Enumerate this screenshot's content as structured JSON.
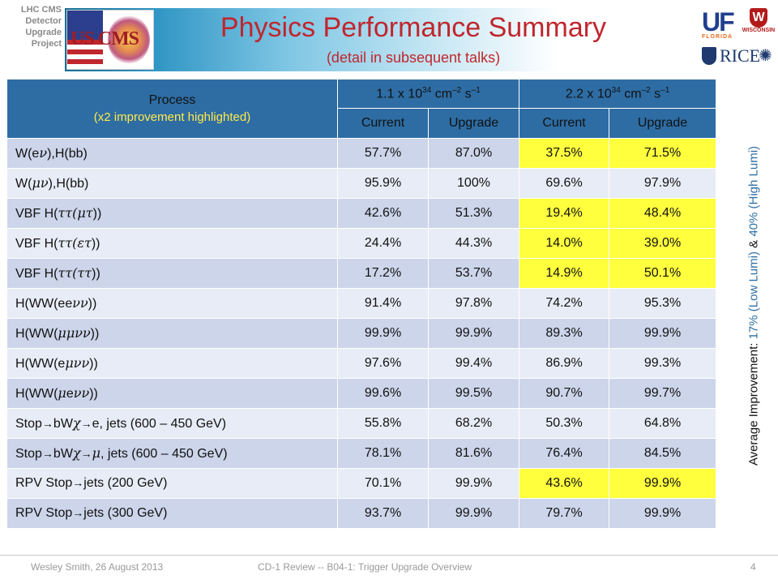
{
  "header": {
    "project_lines": [
      "LHC CMS",
      "Detector",
      "Upgrade",
      "Project"
    ],
    "uscms_logo_text": "US CMS",
    "title": "Physics Performance Summary",
    "subtitle": "(detail in subsequent talks)",
    "logos": {
      "uf": "UF",
      "uf_sub": "FLORIDA",
      "wisconsin": "W",
      "wisconsin_sub": "WISCONSIN",
      "rice": "RICE"
    }
  },
  "table": {
    "process_header": "Process",
    "process_note": "(x2 improvement highlighted)",
    "lumi_groups": [
      {
        "base": "1.1 x 10",
        "exp": "34",
        "units": " cm",
        "uexp1": "–2",
        "units2": " s",
        "uexp2": "–1"
      },
      {
        "base": "2.2 x 10",
        "exp": "34",
        "units": " cm",
        "uexp1": "–2",
        "units2": " s",
        "uexp2": "–1"
      }
    ],
    "subheaders": [
      "Current",
      "Upgrade",
      "Current",
      "Upgrade"
    ],
    "highlight_color": "#ffff3d",
    "rows": [
      {
        "parts": [
          "W(e",
          "ν",
          "),H(bb)"
        ],
        "greek": [
          false,
          true,
          false
        ],
        "values": [
          "57.7%",
          "87.0%",
          "37.5%",
          "71.5%"
        ],
        "highlight": true
      },
      {
        "parts": [
          "W(",
          "μν",
          "),H(bb)"
        ],
        "greek": [
          false,
          true,
          false
        ],
        "values": [
          "95.9%",
          "100%",
          "69.6%",
          "97.9%"
        ],
        "highlight": false
      },
      {
        "parts": [
          "VBF H(",
          "ττ(μτ",
          "))"
        ],
        "greek": [
          false,
          true,
          false
        ],
        "values": [
          "42.6%",
          "51.3%",
          "19.4%",
          "48.4%"
        ],
        "highlight": true
      },
      {
        "parts": [
          "VBF H(",
          "ττ(ετ",
          "))"
        ],
        "greek": [
          false,
          true,
          false
        ],
        "values": [
          "24.4%",
          "44.3%",
          "14.0%",
          "39.0%"
        ],
        "highlight": true
      },
      {
        "parts": [
          "VBF H(",
          "ττ(ττ",
          "))"
        ],
        "greek": [
          false,
          true,
          false
        ],
        "values": [
          "17.2%",
          "53.7%",
          "14.9%",
          "50.1%"
        ],
        "highlight": true
      },
      {
        "parts": [
          "H(WW(ee",
          "νν",
          "))"
        ],
        "greek": [
          false,
          true,
          false
        ],
        "values": [
          "91.4%",
          "97.8%",
          "74.2%",
          "95.3%"
        ],
        "highlight": false
      },
      {
        "parts": [
          "H(WW(",
          "μμνν",
          "))"
        ],
        "greek": [
          false,
          true,
          false
        ],
        "values": [
          "99.9%",
          "99.9%",
          "89.3%",
          "99.9%"
        ],
        "highlight": false
      },
      {
        "parts": [
          "H(WW(e",
          "μνν",
          "))"
        ],
        "greek": [
          false,
          true,
          false
        ],
        "values": [
          "97.6%",
          "99.4%",
          "86.9%",
          "99.3%"
        ],
        "highlight": false
      },
      {
        "parts": [
          "H(WW(",
          "μ",
          "e",
          "νν",
          "))"
        ],
        "greek": [
          false,
          true,
          false,
          true,
          false
        ],
        "values": [
          "99.6%",
          "99.5%",
          "90.7%",
          "99.7%"
        ],
        "highlight": false
      },
      {
        "parts": [
          "Stop",
          "→",
          "bW",
          "χ",
          "→",
          "e, jets (600 – 450 GeV)"
        ],
        "greek": [
          false,
          false,
          false,
          true,
          false,
          false
        ],
        "values": [
          "55.8%",
          "68.2%",
          "50.3%",
          "64.8%"
        ],
        "highlight": false
      },
      {
        "parts": [
          "Stop",
          "→",
          "bW",
          "χ",
          "→",
          "μ",
          ", jets (600 – 450 GeV)"
        ],
        "greek": [
          false,
          false,
          false,
          true,
          false,
          true,
          false
        ],
        "values": [
          "78.1%",
          "81.6%",
          "76.4%",
          "84.5%"
        ],
        "highlight": false
      },
      {
        "parts": [
          "RPV Stop",
          "→",
          "jets (200 GeV)"
        ],
        "greek": [
          false,
          false,
          false
        ],
        "values": [
          "70.1%",
          "99.9%",
          "43.6%",
          "99.9%"
        ],
        "highlight": true
      },
      {
        "parts": [
          "RPV Stop",
          "→",
          "jets (300 GeV)"
        ],
        "greek": [
          false,
          false,
          false
        ],
        "values": [
          "93.7%",
          "99.9%",
          "79.7%",
          "99.9%"
        ],
        "highlight": false
      }
    ]
  },
  "side_note": {
    "label": "Average Improvement: ",
    "low": "17% (Low Lumi)",
    "joiner": " & ",
    "high": "40% (High Lumi)"
  },
  "footer": {
    "author_date": "Wesley Smith, 26 August 2013",
    "review": "CD-1 Review -- B04-1: Trigger Upgrade Overview",
    "page": "4"
  }
}
